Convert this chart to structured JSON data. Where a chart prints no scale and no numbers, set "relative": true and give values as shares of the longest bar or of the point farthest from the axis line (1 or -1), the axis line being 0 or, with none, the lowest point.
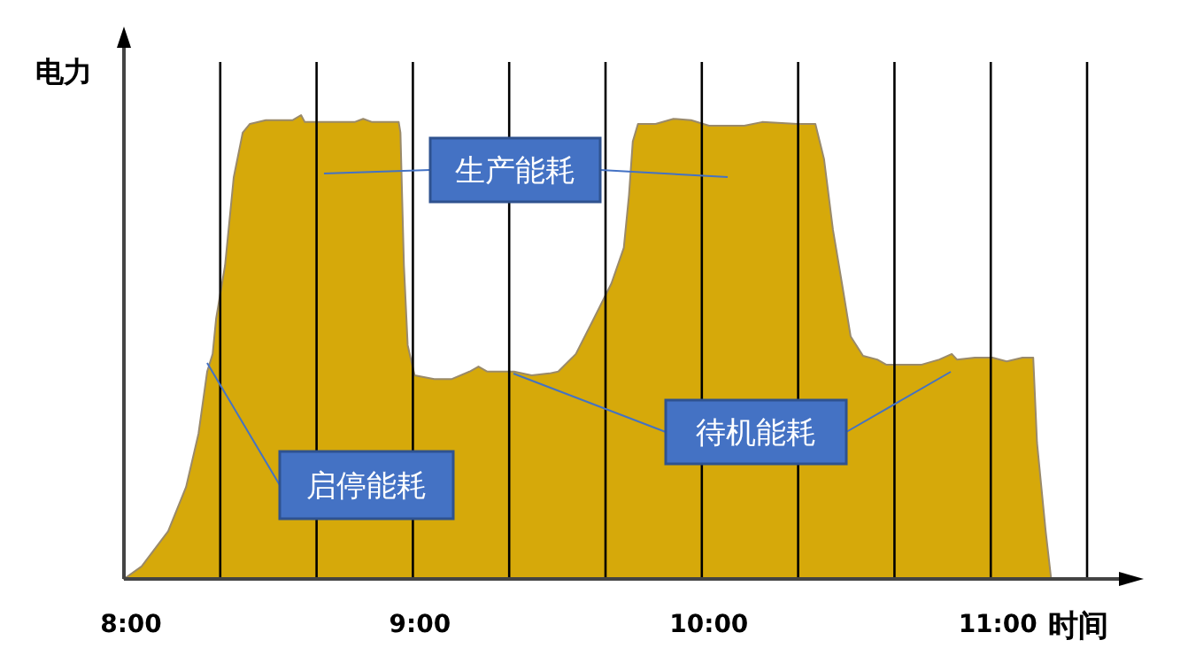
{
  "chart_data": {
    "type": "area",
    "relative": true,
    "xlabel": "时间",
    "ylabel": "电力",
    "color": "#d6a90a",
    "grid": "x",
    "tick_labels": "x",
    "xlim": [
      8,
      11.3333
    ],
    "xticks": [
      {
        "value": 8,
        "label": "8:00"
      },
      {
        "value": 8.3333,
        "label": null
      },
      {
        "value": 8.6667,
        "label": null
      },
      {
        "value": 9,
        "label": "9:00"
      },
      {
        "value": 9.3333,
        "label": null
      },
      {
        "value": 9.6667,
        "label": null
      },
      {
        "value": 10,
        "label": "10:00"
      },
      {
        "value": 10.3333,
        "label": null
      },
      {
        "value": 10.6667,
        "label": null
      },
      {
        "value": 11,
        "label": "11:00"
      },
      {
        "value": 11.3333,
        "label": null
      }
    ],
    "x": [
      8.0,
      8.061,
      8.153,
      8.215,
      8.258,
      8.288,
      8.307,
      8.319,
      8.35,
      8.38,
      8.411,
      8.436,
      8.491,
      8.583,
      8.613,
      8.626,
      8.798,
      8.828,
      8.859,
      8.951,
      8.957,
      8.969,
      8.982,
      9.006,
      9.074,
      9.135,
      9.196,
      9.227,
      9.258,
      9.35,
      9.411,
      9.472,
      9.503,
      9.564,
      9.626,
      9.687,
      9.73,
      9.748,
      9.761,
      9.779,
      9.84,
      9.902,
      9.963,
      10.025,
      10.147,
      10.209,
      10.331,
      10.393,
      10.423,
      10.454,
      10.485,
      10.515,
      10.558,
      10.607,
      10.638,
      10.761,
      10.822,
      10.865,
      10.883,
      10.945,
      11.006,
      11.055,
      11.11,
      11.147,
      11.16,
      11.19,
      11.209
    ],
    "values": [
      0,
      0.027,
      0.103,
      0.198,
      0.313,
      0.447,
      0.485,
      0.561,
      0.676,
      0.866,
      0.962,
      0.981,
      0.989,
      0.989,
      1.0,
      0.985,
      0.985,
      0.992,
      0.985,
      0.985,
      0.962,
      0.676,
      0.504,
      0.439,
      0.431,
      0.431,
      0.447,
      0.458,
      0.447,
      0.447,
      0.439,
      0.443,
      0.447,
      0.485,
      0.561,
      0.637,
      0.714,
      0.828,
      0.943,
      0.981,
      0.981,
      0.992,
      0.989,
      0.977,
      0.977,
      0.985,
      0.981,
      0.981,
      0.905,
      0.752,
      0.637,
      0.523,
      0.481,
      0.473,
      0.462,
      0.462,
      0.473,
      0.485,
      0.473,
      0.477,
      0.477,
      0.469,
      0.477,
      0.477,
      0.294,
      0.103,
      0
    ],
    "annotations": [
      "生产能耗",
      "待机能耗",
      "启停能耗"
    ]
  }
}
